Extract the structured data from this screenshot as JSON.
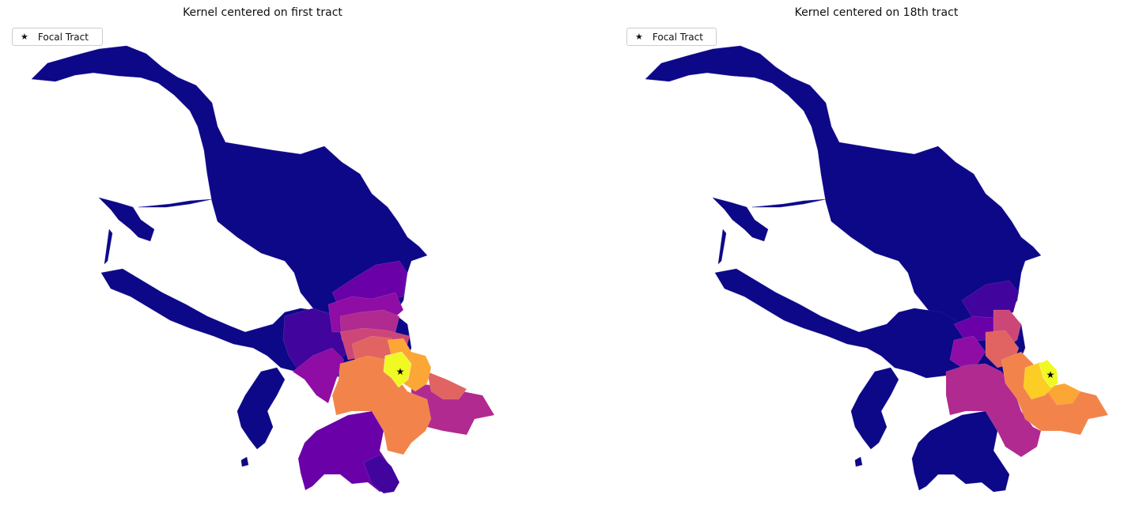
{
  "panels": [
    {
      "title": "Kernel centered on first tract",
      "legend_label": "Focal Tract"
    },
    {
      "title": "Kernel centered on 18th tract",
      "legend_label": "Focal Tract"
    }
  ],
  "legend_marker": "★",
  "colormap": "plasma",
  "colors": {
    "base": "#0d0887",
    "c1": "#41049d",
    "c2": "#6a00a8",
    "c3": "#8f0da4",
    "c4": "#b12a90",
    "c5": "#cc4778",
    "c6": "#e16462",
    "c7": "#f2844b",
    "c8": "#fca636",
    "c9": "#fcce25",
    "c10": "#f0f921",
    "star": "#000000",
    "border": "#ffffff"
  }
}
